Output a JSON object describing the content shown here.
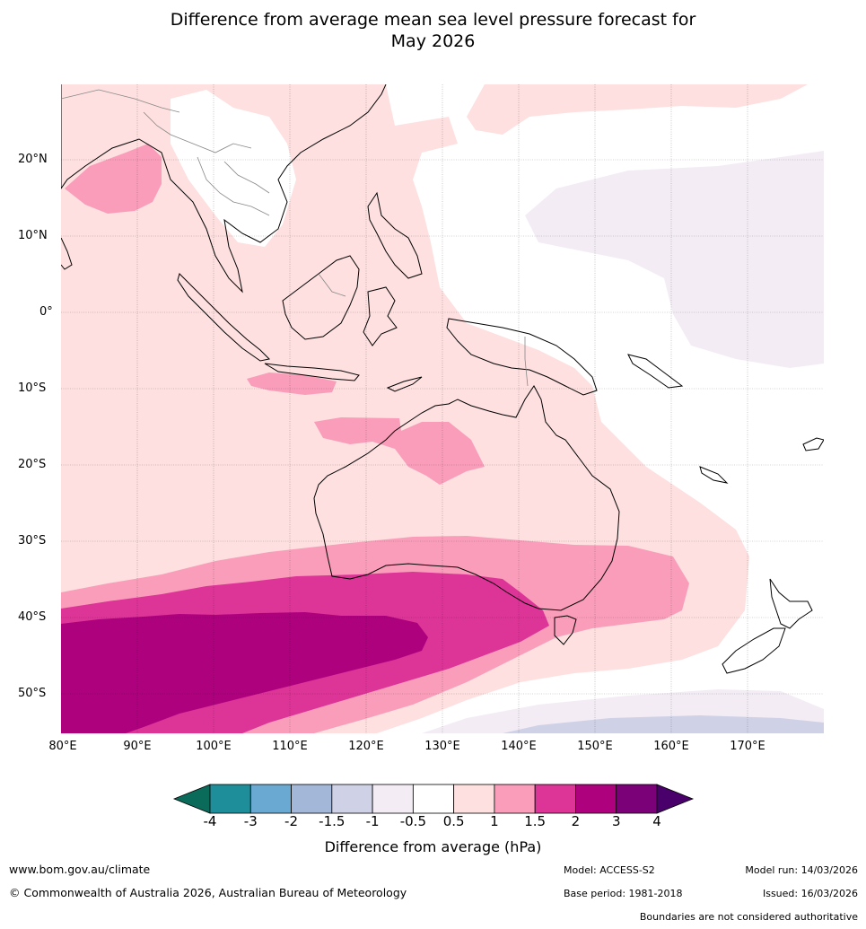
{
  "title": {
    "line1": "Difference from average mean sea level pressure forecast for",
    "line2": "May 2026"
  },
  "map": {
    "lat_labels": [
      "20°N",
      "10°N",
      "0°",
      "10°S",
      "20°S",
      "30°S",
      "40°S",
      "50°S"
    ],
    "lon_labels": [
      "80°E",
      "90°E",
      "100°E",
      "110°E",
      "120°E",
      "130°E",
      "140°E",
      "150°E",
      "160°E",
      "170°E"
    ],
    "extent": {
      "lon_min": 80,
      "lon_max": 180,
      "lat_min": -55,
      "lat_max": 30
    }
  },
  "colorbar": {
    "title": "Difference from average (hPa)",
    "tick_labels": [
      "-4",
      "-3",
      "-2",
      "-1.5",
      "-1",
      "-0.5",
      "0.5",
      "1",
      "1.5",
      "2",
      "3",
      "4"
    ],
    "colors": [
      "#0b6b5a",
      "#1e8f9a",
      "#6aaad2",
      "#a3b7d8",
      "#cfd1e6",
      "#f3ecf5",
      "#ffffff",
      "#fde0df",
      "#f99dba",
      "#dd3497",
      "#ae017e",
      "#7a0177",
      "#49006a"
    ]
  },
  "footer": {
    "website": "www.bom.gov.au/climate",
    "copyright": "© Commonwealth of Australia 2026, Australian Bureau of Meteorology",
    "model": "Model: ACCESS-S2",
    "base_period": "Base period: 1981-2018",
    "model_run": "Model run: 14/03/2026",
    "issued": "Issued: 16/03/2026",
    "disclaimer": "Boundaries are not considered authoritative"
  }
}
